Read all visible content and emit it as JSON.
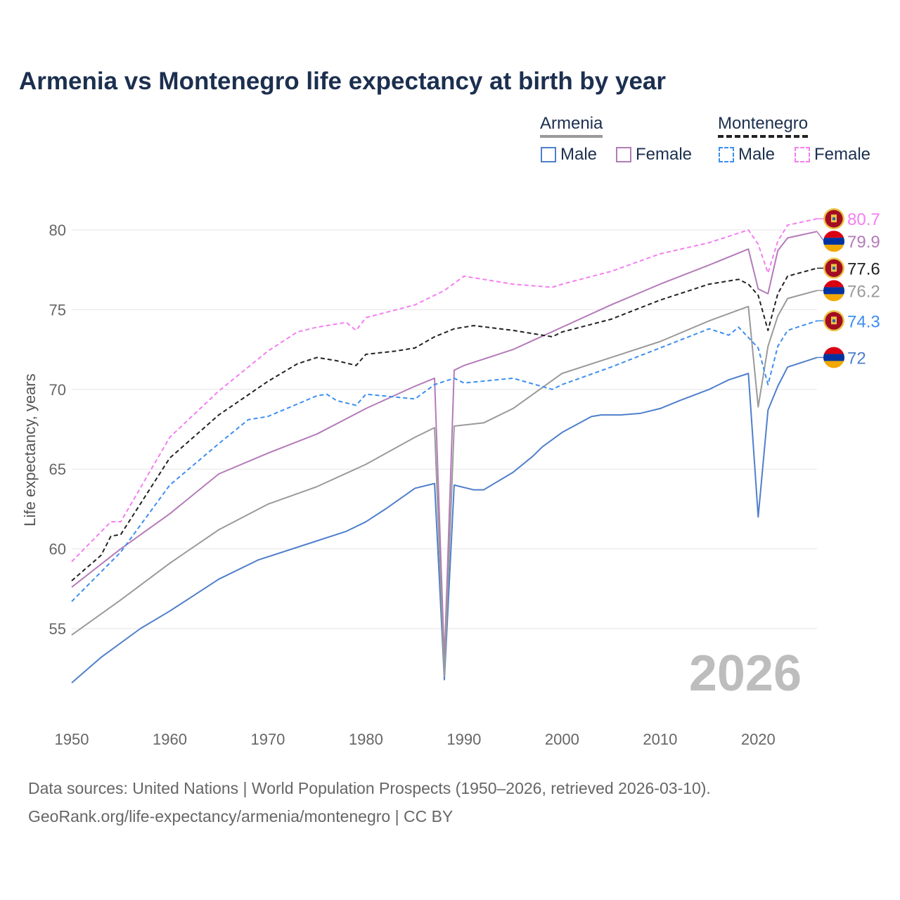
{
  "title": "Armenia vs Montenegro life expectancy at birth by year",
  "legend": {
    "groups": [
      {
        "name": "Armenia",
        "items": [
          "Male",
          "Female"
        ]
      },
      {
        "name": "Montenegro",
        "items": [
          "Male",
          "Female"
        ]
      }
    ]
  },
  "watermark_year": "2026",
  "source_line1": "Data sources: United Nations | World Population Prospects (1950–2026, retrieved 2026-03-10).",
  "source_line2": "GeoRank.org/life-expectancy/armenia/montenegro | CC BY",
  "chart_data": {
    "type": "line",
    "title": "Armenia vs Montenegro life expectancy at birth by year",
    "xlabel": "",
    "ylabel": "Life expectancy, years",
    "xlim": [
      1950,
      2026
    ],
    "ylim": [
      50.5,
      83
    ],
    "xticks": [
      "1950",
      "1960",
      "1970",
      "1980",
      "1990",
      "2000",
      "2010",
      "2020"
    ],
    "yticks": [
      "55",
      "60",
      "65",
      "70",
      "75",
      "80"
    ],
    "grid": true,
    "legend_position": "top-right",
    "series": [
      {
        "name": "Armenia Male",
        "country": "Armenia",
        "color": "#4f7fcb",
        "dash": false,
        "end_label": "72",
        "x": [
          1950,
          1953,
          1957,
          1960,
          1965,
          1969,
          1975,
          1978,
          1980,
          1982,
          1985,
          1987,
          1988,
          1989,
          1991,
          1992,
          1995,
          1997,
          1998,
          2000,
          2003,
          2004,
          2006,
          2008,
          2010,
          2012,
          2015,
          2017,
          2019,
          2020,
          2021,
          2022,
          2023,
          2026
        ],
        "y": [
          51.6,
          53.2,
          55.0,
          56.1,
          58.1,
          59.3,
          60.5,
          61.1,
          61.7,
          62.5,
          63.8,
          64.1,
          51.8,
          64.0,
          63.7,
          63.7,
          64.8,
          65.8,
          66.4,
          67.3,
          68.3,
          68.4,
          68.4,
          68.5,
          68.8,
          69.3,
          70.0,
          70.6,
          71.0,
          62.0,
          68.7,
          70.2,
          71.4,
          72.0
        ]
      },
      {
        "name": "Armenia Female",
        "country": "Armenia",
        "color": "#b47bb9",
        "dash": false,
        "end_label": "79.9",
        "x": [
          1950,
          1955,
          1960,
          1965,
          1970,
          1975,
          1980,
          1985,
          1987,
          1988,
          1989,
          1990,
          1995,
          2000,
          2005,
          2010,
          2015,
          2019,
          2020,
          2021,
          2022,
          2023,
          2026
        ],
        "y": [
          57.6,
          60.0,
          62.2,
          64.7,
          66.0,
          67.2,
          68.8,
          70.2,
          70.7,
          53.0,
          71.2,
          71.5,
          72.5,
          73.9,
          75.3,
          76.6,
          77.8,
          78.8,
          76.3,
          76.0,
          78.7,
          79.5,
          79.9
        ]
      },
      {
        "name": "Armenia Total",
        "country": "Armenia",
        "color": "#9a9a9a",
        "dash": false,
        "end_label": "76.2",
        "x": [
          1950,
          1955,
          1960,
          1965,
          1970,
          1975,
          1980,
          1985,
          1987,
          1988,
          1989,
          1992,
          1995,
          2000,
          2005,
          2010,
          2015,
          2019,
          2020,
          2021,
          2022,
          2023,
          2026
        ],
        "y": [
          54.6,
          56.8,
          59.1,
          61.2,
          62.8,
          63.9,
          65.3,
          67.0,
          67.6,
          52.0,
          67.7,
          67.9,
          68.8,
          71.0,
          72.0,
          73.0,
          74.3,
          75.2,
          68.9,
          72.7,
          74.6,
          75.7,
          76.2
        ]
      },
      {
        "name": "Montenegro Total",
        "country": "Montenegro",
        "color": "#222222",
        "dash": true,
        "end_label": "77.6",
        "x": [
          1950,
          1953,
          1954,
          1955,
          1960,
          1965,
          1970,
          1973,
          1975,
          1977,
          1979,
          1980,
          1983,
          1985,
          1987,
          1989,
          1991,
          1995,
          1999,
          2000,
          2005,
          2010,
          2015,
          2018,
          2019,
          2020,
          2021,
          2022,
          2023,
          2026
        ],
        "y": [
          58.0,
          59.6,
          60.8,
          60.9,
          65.7,
          68.4,
          70.5,
          71.6,
          72.0,
          71.8,
          71.5,
          72.2,
          72.4,
          72.6,
          73.3,
          73.8,
          74.0,
          73.7,
          73.3,
          73.6,
          74.4,
          75.6,
          76.6,
          76.9,
          76.6,
          75.9,
          73.7,
          76.0,
          77.1,
          77.6
        ]
      },
      {
        "name": "Montenegro Male",
        "country": "Montenegro",
        "color": "#3d8ef0",
        "dash": true,
        "end_label": "74.3",
        "x": [
          1950,
          1955,
          1960,
          1965,
          1968,
          1970,
          1975,
          1976,
          1977,
          1979,
          1980,
          1985,
          1987,
          1989,
          1990,
          1995,
          1999,
          2000,
          2005,
          2010,
          2015,
          2017,
          2018,
          2020,
          2021,
          2022,
          2023,
          2026
        ],
        "y": [
          56.7,
          59.8,
          64.0,
          66.6,
          68.1,
          68.3,
          69.6,
          69.7,
          69.3,
          69.0,
          69.7,
          69.4,
          70.3,
          70.7,
          70.4,
          70.7,
          70.0,
          70.3,
          71.4,
          72.6,
          73.8,
          73.4,
          73.9,
          72.6,
          70.3,
          72.7,
          73.7,
          74.3
        ]
      },
      {
        "name": "Montenegro Female",
        "country": "Montenegro",
        "color": "#f47ef0",
        "dash": true,
        "end_label": "80.7",
        "x": [
          1950,
          1954,
          1955,
          1960,
          1965,
          1970,
          1973,
          1975,
          1978,
          1979,
          1980,
          1985,
          1988,
          1990,
          1995,
          1999,
          2000,
          2005,
          2010,
          2015,
          2019,
          2020,
          2021,
          2022,
          2023,
          2026
        ],
        "y": [
          59.2,
          61.7,
          61.7,
          67.0,
          69.9,
          72.4,
          73.6,
          73.9,
          74.2,
          73.7,
          74.5,
          75.3,
          76.2,
          77.1,
          76.6,
          76.4,
          76.6,
          77.4,
          78.5,
          79.2,
          80.0,
          79.1,
          77.3,
          79.3,
          80.3,
          80.7
        ]
      }
    ]
  }
}
